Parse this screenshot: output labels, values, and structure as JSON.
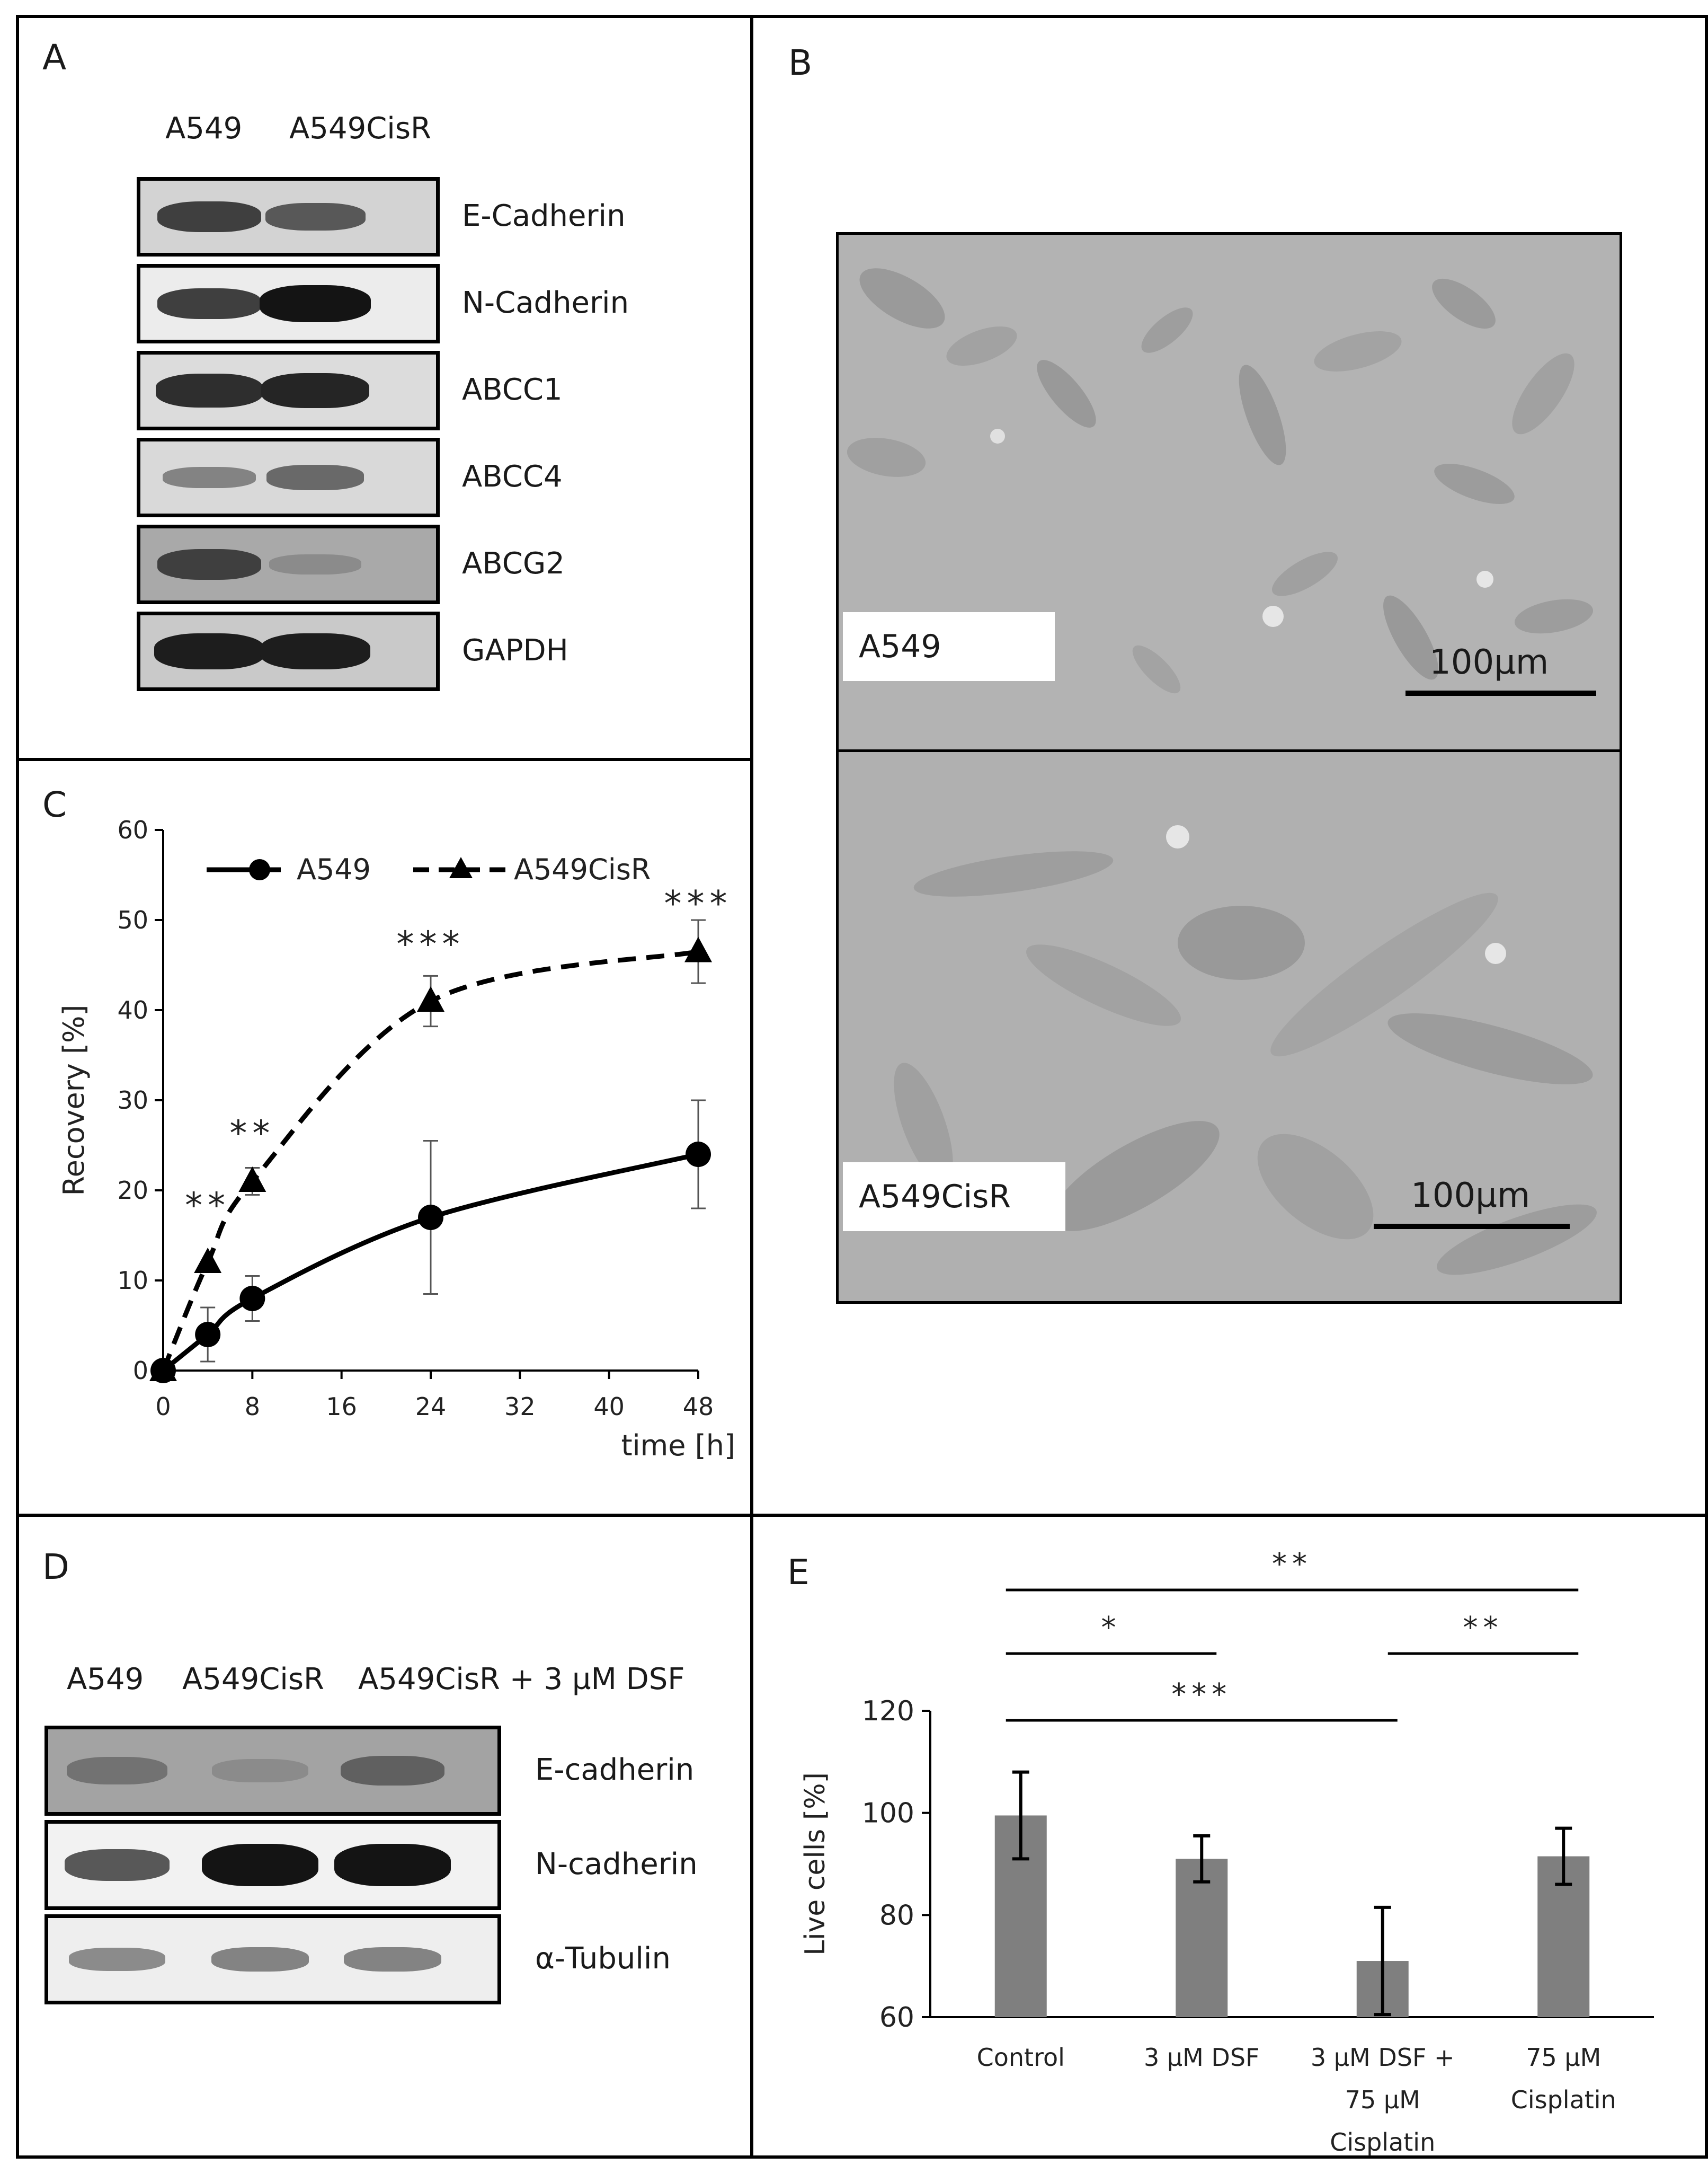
{
  "panels": {
    "A": {
      "letter": "A",
      "columns": [
        "A549",
        "A549CisR"
      ],
      "blots": [
        {
          "label": "E-Cadherin",
          "bg": "#d3d3d3",
          "bands": [
            0.75,
            0.6
          ]
        },
        {
          "label": "N-Cadherin",
          "bg": "#ececec",
          "bands": [
            0.75,
            1.0
          ]
        },
        {
          "label": "ABCC1",
          "bg": "#dcdcdc",
          "bands": [
            0.85,
            0.9
          ]
        },
        {
          "label": "ABCC4",
          "bg": "#d9d9d9",
          "bands": [
            0.35,
            0.5
          ]
        },
        {
          "label": "ABCG2",
          "bg": "#a9a9a9",
          "bands": [
            0.75,
            0.3
          ]
        },
        {
          "label": "GAPDH",
          "bg": "#c9c9c9",
          "bands": [
            0.95,
            0.95
          ]
        }
      ]
    },
    "B": {
      "letter": "B",
      "images": [
        {
          "label": "A549",
          "scale": "100µm"
        },
        {
          "label": "A549CisR",
          "scale": "100µm"
        }
      ]
    },
    "D": {
      "letter": "D",
      "columns": [
        "A549",
        "A549CisR",
        "A549CisR + 3 µM DSF"
      ],
      "blots": [
        {
          "label": "E-cadherin",
          "bg": "#a3a3a3",
          "bands": [
            0.45,
            0.3,
            0.55
          ]
        },
        {
          "label": "N-cadherin",
          "bg": "#f2f2f2",
          "bands": [
            0.6,
            1.0,
            1.0
          ]
        },
        {
          "label": "α-Tubulin",
          "bg": "#eeeeee",
          "bands": [
            0.3,
            0.35,
            0.35
          ]
        }
      ]
    }
  },
  "chart_data": [
    {
      "panel": "C",
      "type": "line",
      "ylabel": "Recovery [%]",
      "xlabel": "time [h]",
      "ylim": [
        0,
        60
      ],
      "xlim": [
        0,
        48
      ],
      "yticks": [
        "0",
        "10",
        "20",
        "30",
        "40",
        "50",
        "60"
      ],
      "xticks": [
        "0",
        "8",
        "16",
        "24",
        "32",
        "40",
        "48"
      ],
      "legend_position": "top",
      "series": [
        {
          "name": "A549",
          "marker": "circle",
          "style": "solid",
          "x": [
            0,
            4,
            8,
            24,
            48
          ],
          "y": [
            0,
            4,
            8,
            17,
            24
          ],
          "err": [
            0,
            3,
            2.5,
            8.5,
            6
          ]
        },
        {
          "name": "A549CisR",
          "marker": "triangle",
          "style": "dashed",
          "x": [
            0,
            4,
            8,
            24,
            48
          ],
          "y": [
            0,
            12,
            21,
            41,
            46.5
          ],
          "err": [
            0,
            0,
            1.5,
            2.8,
            3.5
          ]
        }
      ],
      "annotations": [
        {
          "text": "**",
          "x": 4,
          "y": 17
        },
        {
          "text": "**",
          "x": 8,
          "y": 25
        },
        {
          "text": "***",
          "x": 24,
          "y": 46
        },
        {
          "text": "***",
          "x": 48,
          "y": 50.5
        }
      ]
    },
    {
      "panel": "E",
      "type": "bar",
      "ylabel": "Live cells [%]",
      "ylim": [
        60,
        120
      ],
      "yticks": [
        "60",
        "80",
        "100",
        "120"
      ],
      "categories": [
        [
          "Control"
        ],
        [
          "3 µM DSF"
        ],
        [
          "3 µM DSF +",
          "75 µM",
          "Cisplatin"
        ],
        [
          "75 µM",
          "Cisplatin"
        ]
      ],
      "values": [
        99.5,
        91,
        71,
        91.5
      ],
      "errors": [
        8.5,
        4.5,
        10.5,
        5.5
      ],
      "bar_color": "#7f7f7f",
      "significance": [
        {
          "from": 0,
          "to": 3,
          "text": "**"
        },
        {
          "from": 0,
          "to": 1,
          "text": "*"
        },
        {
          "from": 2,
          "to": 3,
          "text": "**"
        },
        {
          "from": 0,
          "to": 2,
          "text": "***"
        }
      ]
    }
  ],
  "chart_letters": {
    "C": "C",
    "E": "E"
  }
}
